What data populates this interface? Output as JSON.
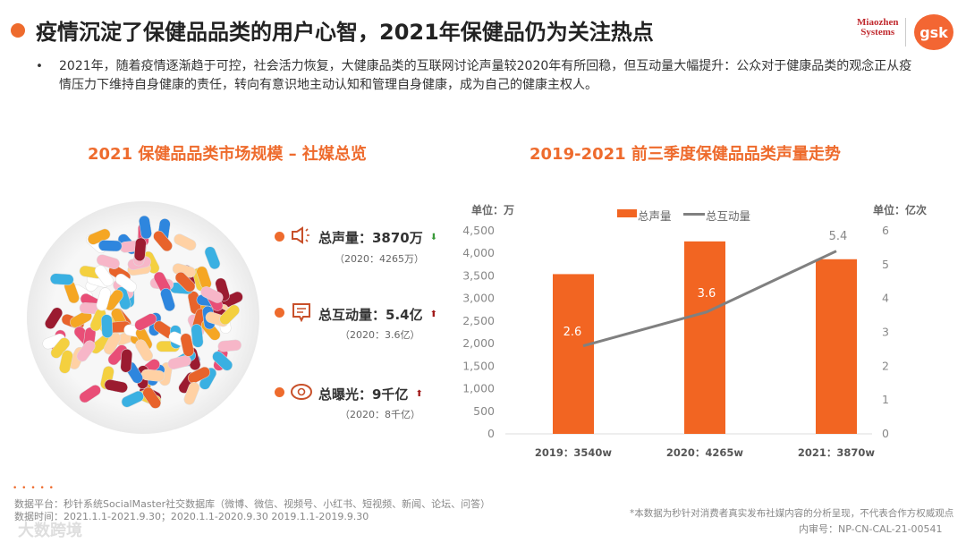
{
  "title": "疫情沉淀了保健品品类的用户心智，2021年保健品仍为关注热点",
  "logos": {
    "miaozhen": "Miaozhen Systems",
    "gsk": "gsk"
  },
  "bullet": "•",
  "body_text": "2021年，随着疫情逐渐趋于可控，社会活力恢复，大健康品类的互联网讨论声量较2020年有所回稳，但互动量大幅提升：公众对于健康品类的观念正从疫情压力下维持自身健康的责任，转向有意识地主动认知和管理自身健康，成为自己的健康主权人。",
  "left_section": {
    "title": "2021 保健品品类市场规模 – 社媒总览",
    "kpis": [
      {
        "icon": "megaphone-icon",
        "label": "总声量：3870万",
        "sub": "（2020：4265万）",
        "trend": "down",
        "arrow": "⬇",
        "color": "#3a9a3a"
      },
      {
        "icon": "comment-icon",
        "label": "总互动量：5.4亿",
        "sub": "（2020：3.6亿）",
        "trend": "up",
        "arrow": "⬆",
        "color": "#a01818"
      },
      {
        "icon": "eye-icon",
        "label": "总曝光：9千亿",
        "sub": "（2020：8千亿）",
        "trend": "up",
        "arrow": "⬆",
        "color": "#a01818"
      }
    ]
  },
  "right_section": {
    "title": "2019-2021 前三季度保健品品类声量走势"
  },
  "chart_data": {
    "type": "bar+line",
    "categories": [
      "2019：3540w",
      "2020：4265w",
      "2021：3870w"
    ],
    "left_unit": "单位：万",
    "right_unit": "单位：亿次",
    "left_ylim": [
      0,
      4500
    ],
    "left_ticks": [
      "0",
      "500",
      "1,000",
      "1,500",
      "2,000",
      "2,500",
      "3,000",
      "3,500",
      "4,000",
      "4,500"
    ],
    "right_ylim": [
      0,
      6
    ],
    "right_ticks": [
      "0",
      "1",
      "2",
      "3",
      "4",
      "5",
      "6"
    ],
    "series": [
      {
        "name": "总声量",
        "type": "bar",
        "axis": "left",
        "color": "#f26522",
        "values": [
          3540,
          4265,
          3870
        ]
      },
      {
        "name": "总互动量",
        "type": "line",
        "axis": "right",
        "color": "#808080",
        "values": [
          2.6,
          3.6,
          5.4
        ],
        "labels": [
          "2.6",
          "3.6",
          "5.4"
        ]
      }
    ],
    "legend": "top"
  },
  "footer": {
    "dots": "• • • • •",
    "source": "数据平台：秒针系统SocialMaster社交数据库（微博、微信、视频号、小红书、短视频、新闻、论坛、问答）",
    "period": "数据时间：2021.1.1-2021.9.30；2020.1.1-2020.9.30 2019.1.1-2019.9.30",
    "disclaimer": "*本数据为秒针对消费者真实发布社媒内容的分析呈现，不代表合作方权威观点",
    "review_no": "内审号：NP-CN-CAL-21-00541",
    "watermark": "大数跨境"
  }
}
